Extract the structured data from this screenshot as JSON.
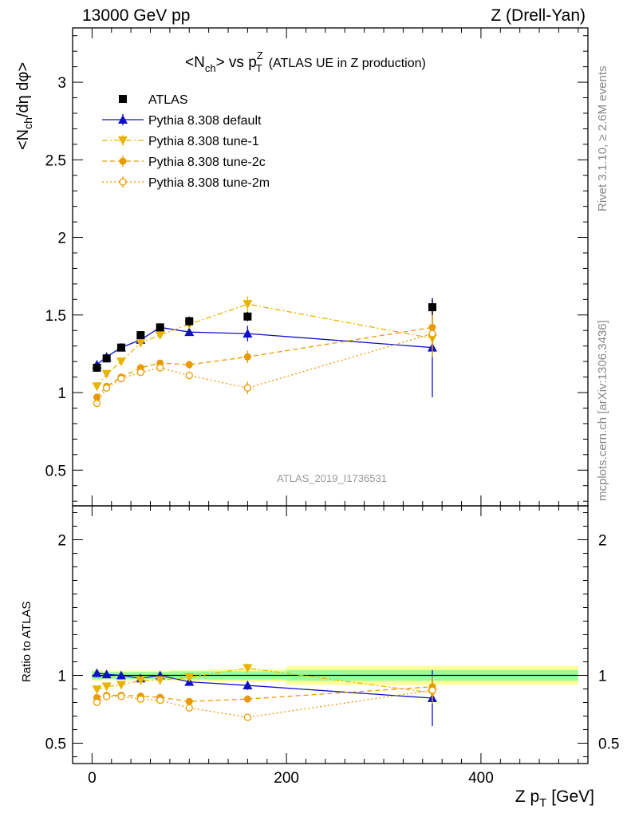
{
  "header": {
    "left": "13000 GeV pp",
    "right": "Z (Drell-Yan)"
  },
  "side_text": {
    "rivet": "Rivet 3.1.10, ≥ 2.6M events",
    "mcplots": "mcplots.cern.ch [arXiv:1306.3436]"
  },
  "chart_data": {
    "type": "line",
    "title": "<N_ch> vs p_T^Z (ATLAS UE in Z production)",
    "title_main": "<N",
    "title_sub1": "ch",
    "title_mid": "> vs p",
    "title_sup": "Z",
    "title_sub2": "T",
    "title_rest": "(ATLAS UE in Z production)",
    "analysis_label": "ATLAS_2019_I1736531",
    "xlabel": "Z p",
    "xlabel_sub": "T",
    "xlabel_unit": "[GeV]",
    "ylabel": "<N_ch/dη dφ>",
    "ylabel_main": "<N",
    "ylabel_sub": "ch",
    "ylabel_rest": "/dη dφ>",
    "ratio_ylabel": "Ratio to ATLAS",
    "xlim": [
      -20,
      510
    ],
    "ylim": [
      0.27,
      3.35
    ],
    "ratio_ylim": [
      0.35,
      2.25
    ],
    "x_ticks": [
      0,
      200,
      400
    ],
    "y_ticks": [
      0.5,
      1,
      1.5,
      2,
      2.5,
      3
    ],
    "y_tick_labels": [
      "0.5",
      "1",
      "1.5",
      "2",
      "2.5",
      "3"
    ],
    "ratio_ticks": [
      0.5,
      1,
      2
    ],
    "ratio_tick_labels": [
      "0.5",
      "1",
      "2"
    ],
    "x": [
      5,
      15,
      30,
      50,
      70,
      100,
      160,
      350
    ],
    "data": {
      "name": "ATLAS",
      "values": [
        1.16,
        1.22,
        1.29,
        1.37,
        1.42,
        1.46,
        1.49,
        1.55
      ],
      "errors": [
        0.02,
        0.02,
        0.02,
        0.02,
        0.02,
        0.03,
        0.03,
        0.05
      ],
      "band_edges": [
        0,
        10,
        20,
        40,
        60,
        80,
        120,
        200,
        500
      ],
      "band_inner": [
        0.03,
        0.025,
        0.025,
        0.025,
        0.025,
        0.03,
        0.03,
        0.04
      ],
      "band_outer": [
        0.04,
        0.035,
        0.035,
        0.035,
        0.035,
        0.04,
        0.045,
        0.07
      ]
    },
    "series": [
      {
        "name": "Pythia 8.308 default",
        "color": "#1010c8",
        "marker": "triangle-up",
        "dash": "",
        "values": [
          1.18,
          1.23,
          1.29,
          1.34,
          1.42,
          1.39,
          1.38,
          1.29
        ],
        "errors": [
          0.01,
          0.01,
          0.01,
          0.015,
          0.02,
          0.025,
          0.05,
          0.32
        ]
      },
      {
        "name": "Pythia 8.308 tune-1",
        "color": "#e8b400",
        "marker": "triangle-down",
        "dash": "7,3,2,3",
        "values": [
          1.04,
          1.12,
          1.2,
          1.32,
          1.37,
          1.44,
          1.57,
          1.35
        ],
        "errors": [
          0.01,
          0.01,
          0.01,
          0.015,
          0.02,
          0.025,
          0.05,
          0.12
        ]
      },
      {
        "name": "Pythia 8.308 tune-2c",
        "color": "#e89a00",
        "marker": "circle",
        "dash": "6,4",
        "values": [
          0.97,
          1.04,
          1.1,
          1.16,
          1.19,
          1.18,
          1.23,
          1.42
        ],
        "errors": [
          0.01,
          0.01,
          0.01,
          0.015,
          0.02,
          0.025,
          0.04,
          0.12
        ]
      },
      {
        "name": "Pythia 8.308 tune-2m",
        "color": "#e89a00",
        "marker": "circle-open",
        "dash": "2,3",
        "values": [
          0.93,
          1.03,
          1.09,
          1.13,
          1.16,
          1.11,
          1.03,
          1.38
        ],
        "errors": [
          0.01,
          0.01,
          0.01,
          0.015,
          0.02,
          0.025,
          0.04,
          0.12
        ]
      }
    ]
  }
}
